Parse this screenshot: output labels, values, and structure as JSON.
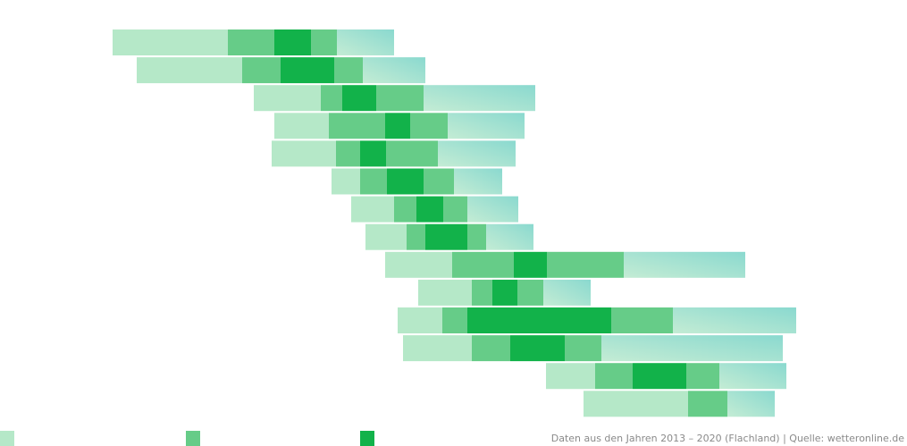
{
  "chart_data": {
    "type": "floating-stacked-bar",
    "source": "Daten aus den Jahren 2013 – 2020 (Flachland) | Quelle: wetteronline.de",
    "xlim": [
      0,
      1015
    ],
    "starts": [
      126,
      153,
      284,
      307,
      304,
      371,
      393,
      409,
      431,
      468,
      445,
      451,
      611,
      653
    ],
    "series": [
      {
        "color": "#b5e8c8",
        "values": [
          129,
          118,
          75,
          61,
          72,
          32,
          48,
          46,
          75,
          60,
          50,
          77,
          55,
          117
        ]
      },
      {
        "color": "#66cc88",
        "values": [
          52,
          43,
          24,
          63,
          27,
          30,
          25,
          21,
          69,
          23,
          28,
          43,
          42,
          0
        ]
      },
      {
        "color": "#12b24a",
        "values": [
          41,
          60,
          38,
          28,
          29,
          41,
          30,
          47,
          37,
          28,
          161,
          61,
          60,
          0
        ]
      },
      {
        "color": "#66cc88",
        "values": [
          29,
          32,
          53,
          42,
          58,
          34,
          27,
          21,
          86,
          29,
          69,
          41,
          37,
          44
        ]
      },
      {
        "color": "#a8e4d0",
        "values": [
          64,
          70,
          125,
          86,
          87,
          54,
          57,
          53,
          136,
          53,
          138,
          203,
          75,
          53
        ]
      }
    ]
  }
}
